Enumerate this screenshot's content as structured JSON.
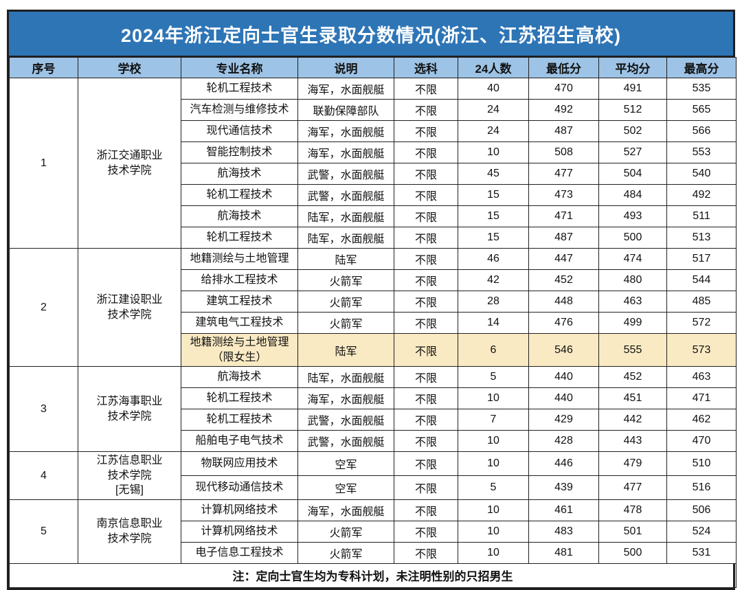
{
  "title": "2024年浙江定向士官生录取分数情况(浙江、江苏招生高校)",
  "columns": [
    "序号",
    "学校",
    "专业名称",
    "说明",
    "选科",
    "24人数",
    "最低分",
    "平均分",
    "最高分"
  ],
  "column_keys": [
    "no",
    "school",
    "major",
    "desc",
    "subject",
    "count",
    "min",
    "avg",
    "max"
  ],
  "schools": [
    {
      "no": "1",
      "name": "浙江交通职业\n技术学院",
      "rows": [
        {
          "major": "轮机工程技术",
          "desc": "海军，水面舰艇",
          "subject": "不限",
          "count": "40",
          "min": "470",
          "avg": "491",
          "max": "535",
          "highlight": false
        },
        {
          "major": "汽车检测与维修技术",
          "desc": "联勤保障部队",
          "subject": "不限",
          "count": "24",
          "min": "492",
          "avg": "512",
          "max": "565",
          "highlight": false
        },
        {
          "major": "现代通信技术",
          "desc": "海军，水面舰艇",
          "subject": "不限",
          "count": "24",
          "min": "487",
          "avg": "502",
          "max": "566",
          "highlight": false
        },
        {
          "major": "智能控制技术",
          "desc": "海军，水面舰艇",
          "subject": "不限",
          "count": "10",
          "min": "508",
          "avg": "527",
          "max": "553",
          "highlight": false
        },
        {
          "major": "航海技术",
          "desc": "武警，水面舰艇",
          "subject": "不限",
          "count": "45",
          "min": "477",
          "avg": "504",
          "max": "540",
          "highlight": false
        },
        {
          "major": "轮机工程技术",
          "desc": "武警，水面舰艇",
          "subject": "不限",
          "count": "15",
          "min": "473",
          "avg": "484",
          "max": "492",
          "highlight": false
        },
        {
          "major": "航海技术",
          "desc": "陆军，水面舰艇",
          "subject": "不限",
          "count": "15",
          "min": "471",
          "avg": "493",
          "max": "511",
          "highlight": false
        },
        {
          "major": "轮机工程技术",
          "desc": "陆军，水面舰艇",
          "subject": "不限",
          "count": "15",
          "min": "487",
          "avg": "500",
          "max": "513",
          "highlight": false
        }
      ]
    },
    {
      "no": "2",
      "name": "浙江建设职业\n技术学院",
      "rows": [
        {
          "major": "地籍测绘与土地管理",
          "desc": "陆军",
          "subject": "不限",
          "count": "46",
          "min": "447",
          "avg": "474",
          "max": "517",
          "highlight": false
        },
        {
          "major": "给排水工程技术",
          "desc": "火箭军",
          "subject": "不限",
          "count": "42",
          "min": "452",
          "avg": "480",
          "max": "544",
          "highlight": false
        },
        {
          "major": "建筑工程技术",
          "desc": "火箭军",
          "subject": "不限",
          "count": "28",
          "min": "448",
          "avg": "463",
          "max": "485",
          "highlight": false
        },
        {
          "major": "建筑电气工程技术",
          "desc": "火箭军",
          "subject": "不限",
          "count": "14",
          "min": "476",
          "avg": "499",
          "max": "572",
          "highlight": false
        },
        {
          "major": "地籍测绘与土地管理\n（限女生）",
          "desc": "陆军",
          "subject": "不限",
          "count": "6",
          "min": "546",
          "avg": "555",
          "max": "573",
          "highlight": true
        }
      ]
    },
    {
      "no": "3",
      "name": "江苏海事职业\n技术学院",
      "rows": [
        {
          "major": "航海技术",
          "desc": "陆军，水面舰艇",
          "subject": "不限",
          "count": "5",
          "min": "440",
          "avg": "452",
          "max": "463",
          "highlight": false
        },
        {
          "major": "轮机工程技术",
          "desc": "海军，水面舰艇",
          "subject": "不限",
          "count": "10",
          "min": "440",
          "avg": "451",
          "max": "471",
          "highlight": false
        },
        {
          "major": "轮机工程技术",
          "desc": "武警，水面舰艇",
          "subject": "不限",
          "count": "7",
          "min": "429",
          "avg": "442",
          "max": "462",
          "highlight": false
        },
        {
          "major": "船舶电子电气技术",
          "desc": "武警，水面舰艇",
          "subject": "不限",
          "count": "10",
          "min": "428",
          "avg": "443",
          "max": "470",
          "highlight": false
        }
      ]
    },
    {
      "no": "4",
      "name": "江苏信息职业\n技术学院\n[无锡]",
      "rows": [
        {
          "major": "物联网应用技术",
          "desc": "空军",
          "subject": "不限",
          "count": "10",
          "min": "446",
          "avg": "479",
          "max": "510",
          "highlight": false
        },
        {
          "major": "现代移动通信技术",
          "desc": "空军",
          "subject": "不限",
          "count": "5",
          "min": "439",
          "avg": "477",
          "max": "516",
          "highlight": false
        }
      ]
    },
    {
      "no": "5",
      "name": "南京信息职业\n技术学院",
      "rows": [
        {
          "major": "计算机网络技术",
          "desc": "海军，水面舰艇",
          "subject": "不限",
          "count": "10",
          "min": "461",
          "avg": "478",
          "max": "506",
          "highlight": false
        },
        {
          "major": "计算机网络技术",
          "desc": "火箭军",
          "subject": "不限",
          "count": "10",
          "min": "483",
          "avg": "501",
          "max": "524",
          "highlight": false
        },
        {
          "major": "电子信息工程技术",
          "desc": "火箭军",
          "subject": "不限",
          "count": "10",
          "min": "481",
          "avg": "500",
          "max": "531",
          "highlight": false
        }
      ]
    }
  ],
  "note": "注：定向士官生均为专科计划，未注明性别的只招男生",
  "colors": {
    "title_bg": "#2E75B6",
    "header_bg": "#9DC3E6",
    "highlight_bg": "#FAEAC3",
    "border": "#1F1F1F",
    "title_text": "#FFFFFF"
  }
}
